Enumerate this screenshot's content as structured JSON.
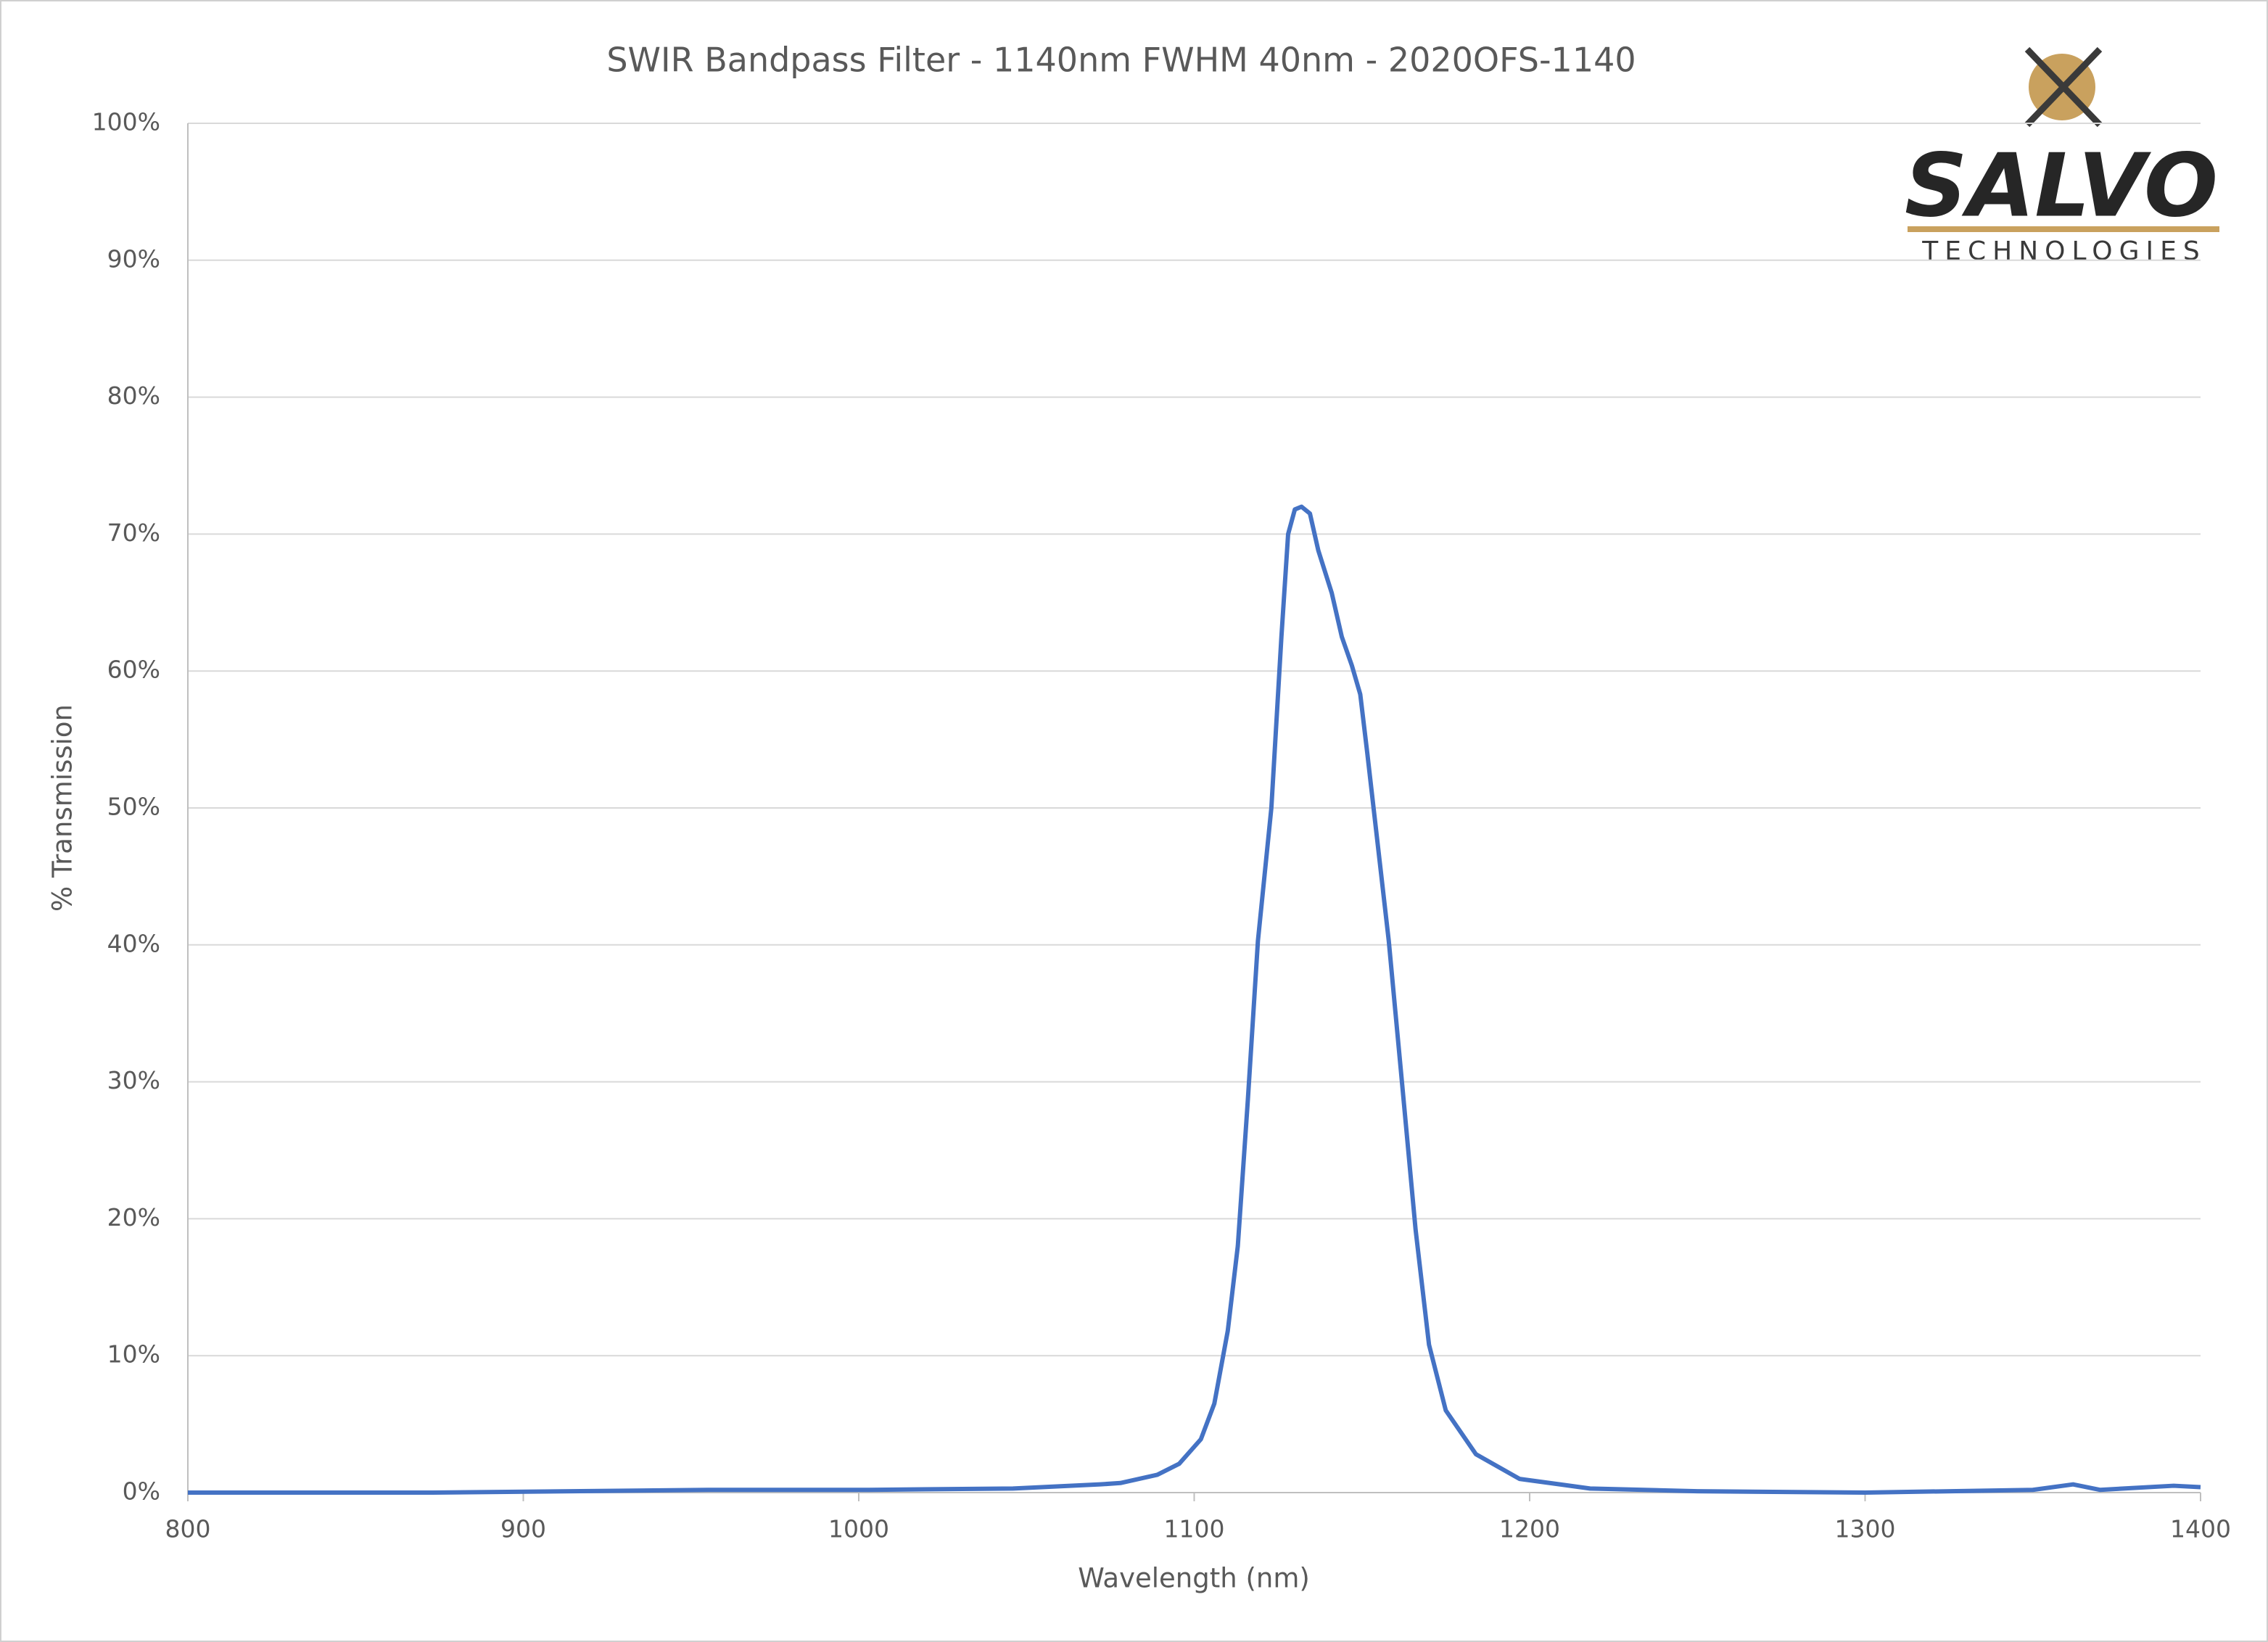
{
  "chart_data": {
    "type": "line",
    "title": "SWIR Bandpass Filter - 1140nm FWHM 40nm - 2020OFS-1140",
    "x_label": "Wavelength (nm)",
    "y_label": "% Transmission",
    "color": "#4472c4",
    "grid": true,
    "x": [
      800,
      873,
      955,
      1003,
      1046,
      1072,
      1078,
      1089,
      1095.5,
      1102,
      1106,
      1110,
      1113,
      1116,
      1119,
      1123,
      1126,
      1128,
      1130,
      1132,
      1134.5,
      1137,
      1141,
      1144,
      1147,
      1149.5,
      1151.6,
      1158,
      1162,
      1166,
      1170,
      1175,
      1184,
      1197,
      1218,
      1250,
      1300,
      1350,
      1362,
      1370,
      1392,
      1400
    ],
    "values": [
      0,
      0,
      0.2,
      0.2,
      0.3,
      0.6,
      0.7,
      1.3,
      2.1,
      3.9,
      6.5,
      11.8,
      18,
      28.7,
      40.3,
      50,
      62.5,
      70,
      71.8,
      72,
      71.5,
      68.8,
      65.7,
      62.5,
      60.4,
      58.3,
      54,
      40.3,
      29.8,
      19.2,
      10.8,
      6,
      2.8,
      1,
      0.3,
      0.1,
      0,
      0.2,
      0.6,
      0.2,
      0.5,
      0.4
    ],
    "xlim": [
      800,
      1400
    ],
    "xticks": [
      800,
      900,
      1000,
      1100,
      1200,
      1300,
      1400
    ],
    "ylim": [
      0,
      100
    ],
    "yticks": [
      {
        "value": 0,
        "label": "0%"
      },
      {
        "value": 10,
        "label": "10%"
      },
      {
        "value": 20,
        "label": "20%"
      },
      {
        "value": 30,
        "label": "30%"
      },
      {
        "value": 40,
        "label": "40%"
      },
      {
        "value": 50,
        "label": "50%"
      },
      {
        "value": 60,
        "label": "60%"
      },
      {
        "value": 70,
        "label": "70%"
      },
      {
        "value": 80,
        "label": "80%"
      },
      {
        "value": 90,
        "label": "90%"
      },
      {
        "value": 100,
        "label": "100%"
      }
    ]
  },
  "logo": {
    "name": "SALVO",
    "tagline": "TECHNOLOGIES"
  }
}
